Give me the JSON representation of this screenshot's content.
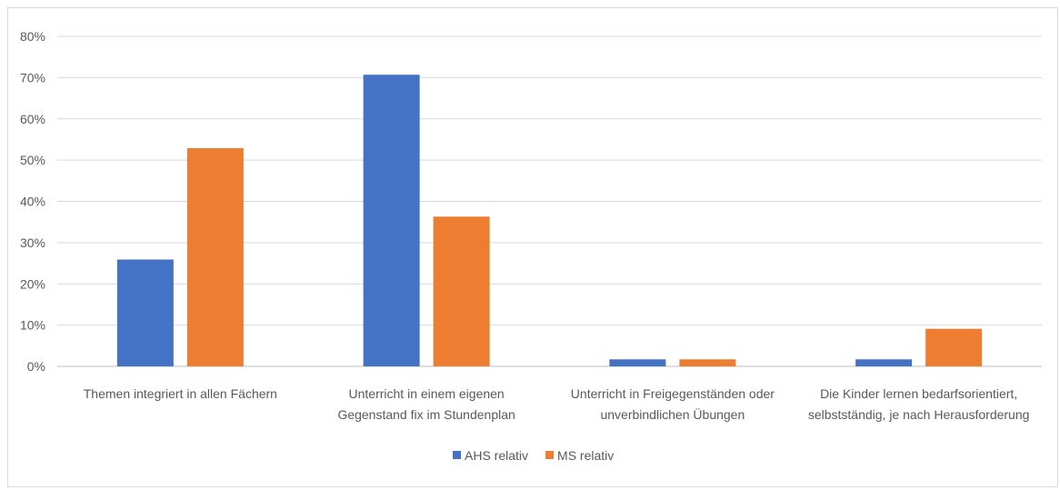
{
  "chart_data": {
    "type": "bar",
    "categories": [
      [
        "Themen integriert in allen Fächern"
      ],
      [
        "Unterricht in einem eigenen",
        "Gegenstand fix im Stundenplan"
      ],
      [
        "Unterricht in Freigegenständen oder",
        "unverbindlichen Übungen"
      ],
      [
        "Die Kinder lernen bedarfsorientiert,",
        "selbstständig, je nach Herausforderung"
      ]
    ],
    "series": [
      {
        "name": "AHS relativ",
        "color": "#4472c4",
        "values": [
          25.9,
          70.7,
          1.7,
          1.7
        ]
      },
      {
        "name": "MS relativ",
        "color": "#ed7d31",
        "values": [
          52.9,
          36.3,
          1.7,
          9.1
        ]
      }
    ],
    "ylim": [
      0,
      80
    ],
    "yticks": [
      "0%",
      "10%",
      "20%",
      "30%",
      "40%",
      "50%",
      "60%",
      "70%",
      "80%"
    ],
    "grid": true,
    "legend": "bottom"
  }
}
